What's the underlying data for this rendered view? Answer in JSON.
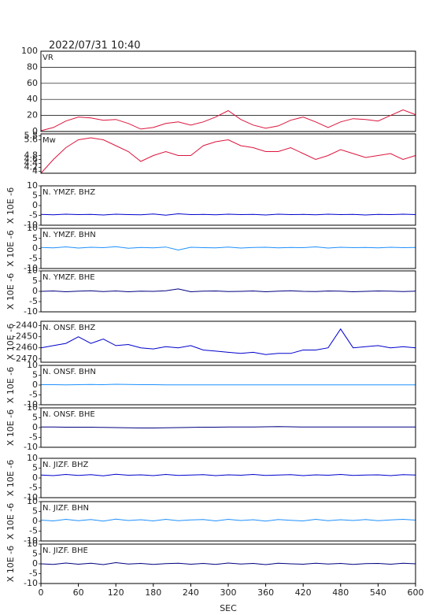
{
  "chart_data": [
    {
      "type": "line",
      "title": "2022/07/31 10:40",
      "label": "VR",
      "grid": true,
      "x": [
        0,
        20,
        40,
        60,
        80,
        100,
        120,
        140,
        160,
        180,
        200,
        220,
        240,
        260,
        280,
        300,
        320,
        340,
        360,
        380,
        400,
        420,
        440,
        460,
        480,
        500,
        520,
        540,
        560,
        580,
        600
      ],
      "xlim": [
        0,
        600
      ],
      "ylim": [
        0,
        100
      ],
      "yticks": [
        0,
        20,
        40,
        60,
        80,
        100
      ],
      "series": [
        {
          "color": "#dc143c",
          "values": [
            1,
            5,
            13,
            18,
            17,
            14,
            15,
            10,
            3,
            5,
            10,
            12,
            8,
            12,
            18,
            26,
            15,
            8,
            4,
            7,
            14,
            18,
            12,
            5,
            12,
            16,
            15,
            13,
            20,
            27,
            21
          ]
        }
      ]
    },
    {
      "type": "line",
      "label": "Mw",
      "grid": false,
      "x": [
        0,
        20,
        40,
        60,
        80,
        100,
        120,
        140,
        160,
        180,
        200,
        220,
        240,
        260,
        280,
        300,
        320,
        340,
        360,
        380,
        400,
        420,
        440,
        460,
        480,
        500,
        520,
        540,
        560,
        580,
        600
      ],
      "xlim": [
        0,
        600
      ],
      "ylim": [
        3.9,
        5.9
      ],
      "yticks": [
        4.0,
        4.2,
        4.4,
        4.6,
        4.8,
        5.6,
        5.8
      ],
      "series": [
        {
          "color": "#dc143c",
          "values": [
            3.9,
            4.6,
            5.2,
            5.6,
            5.7,
            5.6,
            5.3,
            5.0,
            4.5,
            4.8,
            5.0,
            4.8,
            4.8,
            5.3,
            5.5,
            5.6,
            5.3,
            5.2,
            5.0,
            5.0,
            5.2,
            4.9,
            4.6,
            4.8,
            5.1,
            4.9,
            4.7,
            4.8,
            4.9,
            4.6,
            4.8
          ]
        }
      ]
    },
    {
      "type": "line",
      "label": "N. YMZF. BHZ",
      "ylabel": "X 10E -6",
      "grid": false,
      "x": [
        0,
        20,
        40,
        60,
        80,
        100,
        120,
        140,
        160,
        180,
        200,
        220,
        240,
        260,
        280,
        300,
        320,
        340,
        360,
        380,
        400,
        420,
        440,
        460,
        480,
        500,
        520,
        540,
        560,
        580,
        600
      ],
      "xlim": [
        0,
        600
      ],
      "ylim": [
        -10,
        10
      ],
      "yticks": [
        -10,
        -5,
        0,
        5,
        10
      ],
      "series": [
        {
          "color": "#0000cd",
          "values": [
            -4.5,
            -4.7,
            -4.4,
            -4.6,
            -4.5,
            -4.8,
            -4.4,
            -4.6,
            -4.7,
            -4.3,
            -4.9,
            -4.2,
            -4.6,
            -4.5,
            -4.7,
            -4.4,
            -4.6,
            -4.5,
            -4.8,
            -4.4,
            -4.6,
            -4.5,
            -4.7,
            -4.4,
            -4.6,
            -4.5,
            -4.8,
            -4.5,
            -4.6,
            -4.4,
            -4.6
          ]
        }
      ]
    },
    {
      "type": "line",
      "label": "N. YMZF. BHN",
      "ylabel": "X 10E -6",
      "grid": false,
      "x": [
        0,
        20,
        40,
        60,
        80,
        100,
        120,
        140,
        160,
        180,
        200,
        220,
        240,
        260,
        280,
        300,
        320,
        340,
        360,
        380,
        400,
        420,
        440,
        460,
        480,
        500,
        520,
        540,
        560,
        580,
        600
      ],
      "xlim": [
        0,
        600
      ],
      "ylim": [
        -10,
        10
      ],
      "yticks": [
        -10,
        -5,
        0,
        5,
        10
      ],
      "series": [
        {
          "color": "#1e90ff",
          "values": [
            0.5,
            0.3,
            0.8,
            0.2,
            0.6,
            0.4,
            0.9,
            0.1,
            0.5,
            0.3,
            0.7,
            -0.8,
            0.6,
            0.4,
            0.3,
            0.7,
            0.2,
            0.5,
            0.6,
            0.3,
            0.5,
            0.4,
            0.8,
            0.2,
            0.6,
            0.4,
            0.5,
            0.3,
            0.6,
            0.4,
            0.5
          ]
        }
      ]
    },
    {
      "type": "line",
      "label": "N. YMZF. BHE",
      "ylabel": "X 10E -6",
      "grid": false,
      "x": [
        0,
        20,
        40,
        60,
        80,
        100,
        120,
        140,
        160,
        180,
        200,
        220,
        240,
        260,
        280,
        300,
        320,
        340,
        360,
        380,
        400,
        420,
        440,
        460,
        480,
        500,
        520,
        540,
        560,
        580,
        600
      ],
      "xlim": [
        0,
        600
      ],
      "ylim": [
        -10,
        10
      ],
      "yticks": [
        -10,
        -5,
        0,
        5,
        10
      ],
      "series": [
        {
          "color": "#000080",
          "values": [
            0,
            0.2,
            -0.2,
            0.1,
            0.3,
            -0.1,
            0.2,
            -0.2,
            0.1,
            0,
            0.3,
            1.2,
            -0.2,
            0.1,
            0.2,
            -0.1,
            0,
            0.2,
            -0.2,
            0.1,
            0.3,
            0,
            -0.1,
            0.2,
            0.1,
            -0.2,
            0,
            0.2,
            0.1,
            -0.1,
            0.1
          ]
        }
      ]
    },
    {
      "type": "line",
      "label": "N. ONSF. BHZ",
      "ylabel": "X 10E -6",
      "grid": false,
      "x": [
        0,
        20,
        40,
        60,
        80,
        100,
        120,
        140,
        160,
        180,
        200,
        220,
        240,
        260,
        280,
        300,
        320,
        340,
        360,
        380,
        400,
        420,
        440,
        460,
        480,
        500,
        520,
        540,
        560,
        580,
        600
      ],
      "xlim": [
        0,
        600
      ],
      "ylim": [
        -2473,
        -2436
      ],
      "yticks": [
        -2470,
        -2460,
        -2450,
        -2440
      ],
      "series": [
        {
          "color": "#0000cd",
          "values": [
            -2460,
            -2458,
            -2456,
            -2450,
            -2456,
            -2452,
            -2458,
            -2457,
            -2460,
            -2461,
            -2459,
            -2460,
            -2458,
            -2462,
            -2463,
            -2464,
            -2465,
            -2464,
            -2466,
            -2465,
            -2465,
            -2462,
            -2462,
            -2460,
            -2443,
            -2460,
            -2459,
            -2458,
            -2460,
            -2459,
            -2460
          ]
        }
      ]
    },
    {
      "type": "line",
      "label": "N. ONSF. BHN",
      "ylabel": "X 10E -6",
      "grid": false,
      "x": [
        0,
        20,
        40,
        60,
        80,
        100,
        120,
        140,
        160,
        180,
        200,
        220,
        240,
        260,
        280,
        300,
        320,
        340,
        360,
        380,
        400,
        420,
        440,
        460,
        480,
        500,
        520,
        540,
        560,
        580,
        600
      ],
      "xlim": [
        0,
        600
      ],
      "ylim": [
        -10,
        10
      ],
      "yticks": [
        -10,
        -5,
        0,
        5,
        10
      ],
      "series": [
        {
          "color": "#1e90ff",
          "values": [
            0.2,
            0.2,
            0.1,
            0.2,
            0.3,
            0.2,
            0.4,
            0.3,
            0.2,
            0.2,
            0.1,
            0.1,
            0.1,
            0.1,
            0.1,
            0.1,
            0.1,
            0.1,
            0.1,
            0.1,
            0.1,
            0.1,
            0.1,
            0.1,
            0.1,
            0.1,
            0.1,
            0.1,
            0.1,
            0.1,
            0.1
          ]
        }
      ]
    },
    {
      "type": "line",
      "label": "N. ONSF. BHE",
      "ylabel": "X 10E -6",
      "grid": false,
      "x": [
        0,
        20,
        40,
        60,
        80,
        100,
        120,
        140,
        160,
        180,
        200,
        220,
        240,
        260,
        280,
        300,
        320,
        340,
        360,
        380,
        400,
        420,
        440,
        460,
        480,
        500,
        520,
        540,
        560,
        580,
        600
      ],
      "xlim": [
        0,
        600
      ],
      "ylim": [
        -10,
        10
      ],
      "yticks": [
        -10,
        -5,
        0,
        5,
        10
      ],
      "series": [
        {
          "color": "#000080",
          "values": [
            0.3,
            0.3,
            0.2,
            0.2,
            0.2,
            0.1,
            0,
            -0.1,
            -0.2,
            -0.2,
            -0.1,
            0,
            0.1,
            0.2,
            0.2,
            0.3,
            0.3,
            0.3,
            0.4,
            0.5,
            0.4,
            0.3,
            0.3,
            0.3,
            0.3,
            0.3,
            0.3,
            0.3,
            0.3,
            0.3,
            0.3
          ]
        }
      ]
    },
    {
      "type": "line",
      "label": "N. JIZF. BHZ",
      "ylabel": "X 10E -6",
      "grid": false,
      "x": [
        0,
        20,
        40,
        60,
        80,
        100,
        120,
        140,
        160,
        180,
        200,
        220,
        240,
        260,
        280,
        300,
        320,
        340,
        360,
        380,
        400,
        420,
        440,
        460,
        480,
        500,
        520,
        540,
        560,
        580,
        600
      ],
      "xlim": [
        0,
        600
      ],
      "ylim": [
        -10,
        10
      ],
      "yticks": [
        -10,
        -5,
        0,
        5,
        10
      ],
      "series": [
        {
          "color": "#0000cd",
          "values": [
            1.5,
            1.2,
            1.8,
            1.3,
            1.7,
            1.1,
            1.9,
            1.4,
            1.6,
            1.2,
            1.8,
            1.3,
            1.5,
            1.7,
            1.2,
            1.6,
            1.4,
            1.8,
            1.3,
            1.5,
            1.7,
            1.2,
            1.6,
            1.4,
            1.8,
            1.3,
            1.5,
            1.6,
            1.2,
            1.7,
            1.5
          ]
        }
      ]
    },
    {
      "type": "line",
      "label": "N. JIZF. BHN",
      "ylabel": "X 10E -6",
      "grid": false,
      "x": [
        0,
        20,
        40,
        60,
        80,
        100,
        120,
        140,
        160,
        180,
        200,
        220,
        240,
        260,
        280,
        300,
        320,
        340,
        360,
        380,
        400,
        420,
        440,
        460,
        480,
        500,
        520,
        540,
        560,
        580,
        600
      ],
      "xlim": [
        0,
        600
      ],
      "ylim": [
        -10,
        10
      ],
      "yticks": [
        -10,
        -5,
        0,
        5,
        10
      ],
      "series": [
        {
          "color": "#1e90ff",
          "values": [
            0.6,
            0.2,
            1.0,
            0.3,
            0.9,
            0.1,
            1.1,
            0.4,
            0.8,
            0.2,
            1.0,
            0.3,
            0.7,
            0.9,
            0.2,
            1.0,
            0.4,
            0.8,
            0.1,
            0.9,
            0.5,
            0.2,
            1.0,
            0.3,
            0.8,
            0.4,
            0.9,
            0.3,
            0.7,
            1.0,
            0.6
          ]
        }
      ]
    },
    {
      "type": "line",
      "label": "N. JIZF. BHE",
      "ylabel": "X 10E -6",
      "grid": false,
      "x": [
        0,
        20,
        40,
        60,
        80,
        100,
        120,
        140,
        160,
        180,
        200,
        220,
        240,
        260,
        280,
        300,
        320,
        340,
        360,
        380,
        400,
        420,
        440,
        460,
        480,
        500,
        520,
        540,
        560,
        580,
        600
      ],
      "xlim": [
        0,
        600
      ],
      "ylim": [
        -10,
        10
      ],
      "yticks": [
        -10,
        -5,
        0,
        5,
        10
      ],
      "xticks": [
        0,
        60,
        120,
        180,
        240,
        300,
        360,
        420,
        480,
        540,
        600
      ],
      "xlabel": "SEC",
      "series": [
        {
          "color": "#000080",
          "values": [
            0,
            -0.3,
            0.4,
            -0.2,
            0.3,
            -0.4,
            0.6,
            -0.1,
            0.2,
            -0.3,
            0.1,
            0.3,
            -0.2,
            0.2,
            -0.3,
            0.4,
            -0.1,
            0.2,
            -0.4,
            0.3,
            0,
            -0.2,
            0.3,
            -0.1,
            0.2,
            -0.3,
            0.1,
            0.2,
            -0.2,
            0.3,
            0
          ]
        }
      ]
    }
  ]
}
